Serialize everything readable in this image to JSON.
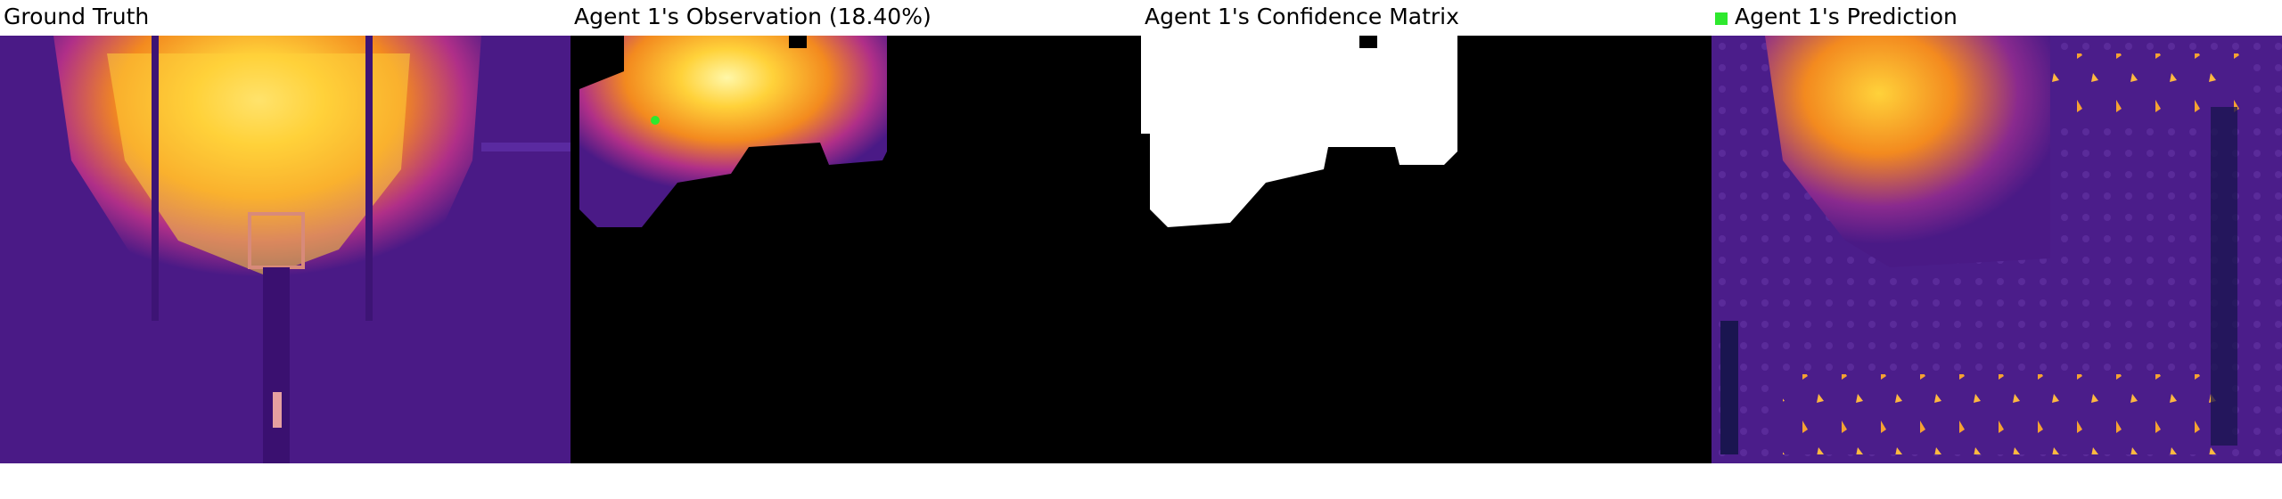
{
  "panels": {
    "ground_truth": {
      "title": "Ground Truth"
    },
    "observation": {
      "title": "Agent 1's Observation (18.40%)"
    },
    "confidence": {
      "title": "Agent 1's Confidence Matrix"
    },
    "prediction": {
      "title": "Agent 1's Prediction",
      "legend_color": "#2ee82e"
    }
  },
  "colors": {
    "background_purple": "#4a1a86",
    "hot_yellow": "#ffd23a",
    "orange": "#f38a1f",
    "magenta": "#b02f88",
    "agent_marker": "#2ee82e",
    "mask_black": "#000000",
    "mask_white": "#ffffff"
  }
}
